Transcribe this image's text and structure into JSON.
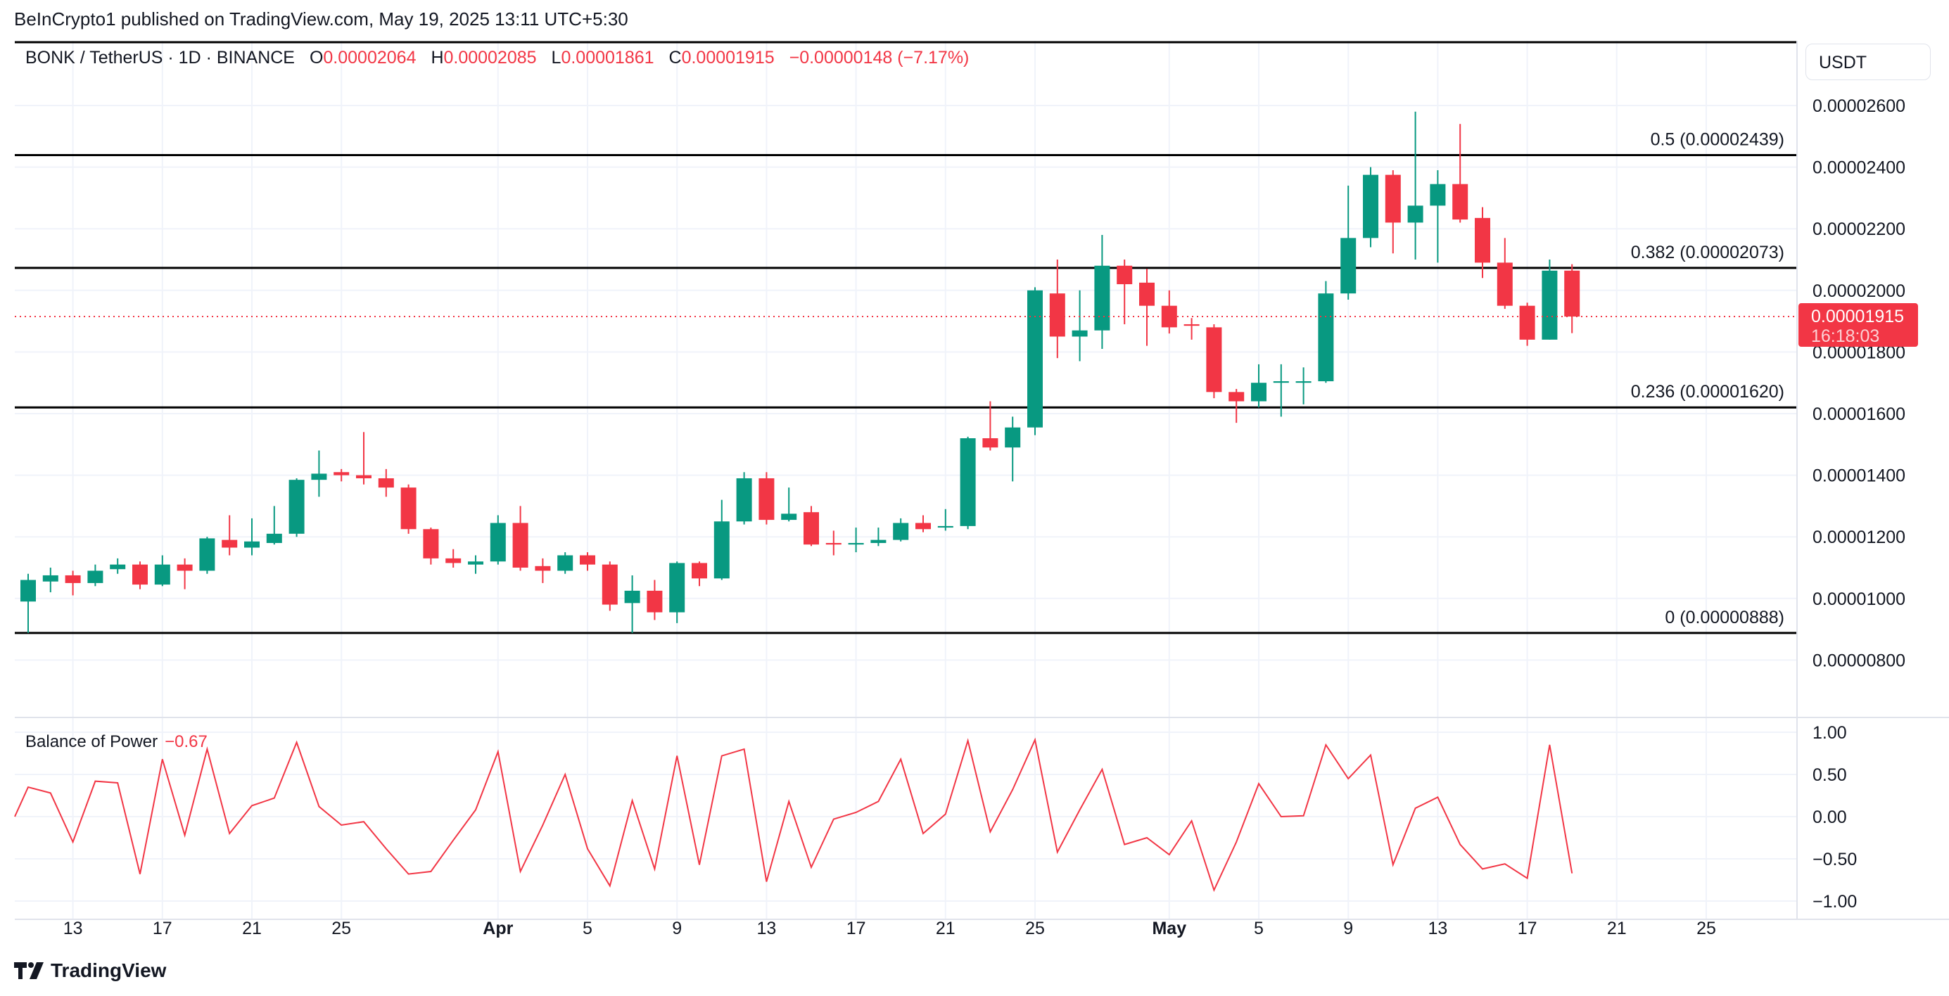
{
  "publish_line": "BeInCrypto1 published on TradingView.com, May 19, 2025 13:11 UTC+5:30",
  "legend": {
    "symbol": "BONK / TetherUS · 1D · BINANCE",
    "o_label": "O",
    "o": "0.00002064",
    "h_label": "H",
    "h": "0.00002085",
    "l_label": "L",
    "l": "0.00001861",
    "c_label": "C",
    "c": "0.00001915",
    "change": "−0.00000148 (−7.17%)"
  },
  "currency": "USDT",
  "last_price": {
    "price": "0.00001915",
    "countdown": "16:18:03"
  },
  "bop_legend": {
    "name": "Balance of Power",
    "value": "−0.67"
  },
  "brand": "TradingView",
  "colors": {
    "up": "#089981",
    "down": "#f23645",
    "bop": "#f23645",
    "grid": "#f0f3fa",
    "fib": "#000000"
  },
  "chart_data": [
    {
      "type": "candlestick",
      "title": "BONK / TetherUS · 1D · BINANCE",
      "price_unit": "1e-8 USDT",
      "ylim": [
        700,
        2800
      ],
      "y_ticks": [
        {
          "value": 2600,
          "label": "0.00002600"
        },
        {
          "value": 2400,
          "label": "0.00002400"
        },
        {
          "value": 2200,
          "label": "0.00002200"
        },
        {
          "value": 2000,
          "label": "0.00002000"
        },
        {
          "value": 1800,
          "label": "0.00001800"
        },
        {
          "value": 1600,
          "label": "0.00001600"
        },
        {
          "value": 1400,
          "label": "0.00001400"
        },
        {
          "value": 1200,
          "label": "0.00001200"
        },
        {
          "value": 1000,
          "label": "0.00001000"
        },
        {
          "value": 800,
          "label": "0.00000800"
        }
      ],
      "fib_levels": [
        {
          "value": 2439,
          "label": "0.5 (0.00002439)"
        },
        {
          "value": 2073,
          "label": "0.382 (0.00002073)"
        },
        {
          "value": 1620,
          "label": "0.236 (0.00001620)"
        },
        {
          "value": 888,
          "label": "0 (0.00000888)"
        }
      ],
      "x_ticks": [
        {
          "day": 2,
          "label": "13"
        },
        {
          "day": 6,
          "label": "17"
        },
        {
          "day": 10,
          "label": "21"
        },
        {
          "day": 14,
          "label": "25"
        },
        {
          "day": 21,
          "label": "Apr",
          "bold": true
        },
        {
          "day": 25,
          "label": "5"
        },
        {
          "day": 29,
          "label": "9"
        },
        {
          "day": 33,
          "label": "13"
        },
        {
          "day": 37,
          "label": "17"
        },
        {
          "day": 41,
          "label": "21"
        },
        {
          "day": 45,
          "label": "25"
        },
        {
          "day": 51,
          "label": "May",
          "bold": true
        },
        {
          "day": 55,
          "label": "5"
        },
        {
          "day": 59,
          "label": "9"
        },
        {
          "day": 63,
          "label": "13"
        },
        {
          "day": 67,
          "label": "17"
        },
        {
          "day": 71,
          "label": "21"
        },
        {
          "day": 75,
          "label": "25"
        }
      ],
      "first_date": "2025-03-11",
      "ohlc": [
        [
          990,
          1060,
          1080,
          888
        ],
        [
          1055,
          1075,
          1100,
          1020
        ],
        [
          1075,
          1050,
          1090,
          1010
        ],
        [
          1050,
          1090,
          1110,
          1040
        ],
        [
          1095,
          1110,
          1130,
          1080
        ],
        [
          1110,
          1045,
          1120,
          1030
        ],
        [
          1045,
          1110,
          1140,
          1040
        ],
        [
          1110,
          1090,
          1130,
          1030
        ],
        [
          1090,
          1195,
          1200,
          1080
        ],
        [
          1190,
          1165,
          1270,
          1140
        ],
        [
          1165,
          1185,
          1260,
          1140
        ],
        [
          1180,
          1210,
          1300,
          1175
        ],
        [
          1210,
          1385,
          1390,
          1200
        ],
        [
          1385,
          1405,
          1480,
          1330
        ],
        [
          1410,
          1400,
          1420,
          1380
        ],
        [
          1400,
          1390,
          1540,
          1370
        ],
        [
          1390,
          1360,
          1420,
          1330
        ],
        [
          1360,
          1225,
          1370,
          1210
        ],
        [
          1225,
          1130,
          1230,
          1110
        ],
        [
          1130,
          1115,
          1160,
          1100
        ],
        [
          1110,
          1120,
          1140,
          1080
        ],
        [
          1120,
          1245,
          1270,
          1110
        ],
        [
          1245,
          1100,
          1300,
          1090
        ],
        [
          1105,
          1090,
          1130,
          1050
        ],
        [
          1090,
          1140,
          1150,
          1080
        ],
        [
          1140,
          1110,
          1150,
          1090
        ],
        [
          1110,
          980,
          1120,
          960
        ],
        [
          985,
          1025,
          1075,
          888
        ],
        [
          1025,
          955,
          1060,
          930
        ],
        [
          955,
          1115,
          1120,
          920
        ],
        [
          1115,
          1065,
          1120,
          1040
        ],
        [
          1065,
          1250,
          1320,
          1060
        ],
        [
          1250,
          1390,
          1410,
          1240
        ],
        [
          1390,
          1255,
          1410,
          1240
        ],
        [
          1255,
          1275,
          1360,
          1250
        ],
        [
          1280,
          1175,
          1300,
          1170
        ],
        [
          1180,
          1175,
          1220,
          1140
        ],
        [
          1175,
          1180,
          1230,
          1150
        ],
        [
          1180,
          1190,
          1230,
          1170
        ],
        [
          1190,
          1245,
          1260,
          1185
        ],
        [
          1245,
          1225,
          1270,
          1215
        ],
        [
          1230,
          1235,
          1290,
          1220
        ],
        [
          1235,
          1520,
          1525,
          1225
        ],
        [
          1520,
          1490,
          1640,
          1480
        ],
        [
          1490,
          1555,
          1590,
          1380
        ],
        [
          1555,
          2000,
          2010,
          1530
        ],
        [
          1990,
          1850,
          2100,
          1780
        ],
        [
          1850,
          1870,
          2000,
          1770
        ],
        [
          1870,
          2080,
          2180,
          1810
        ],
        [
          2080,
          2020,
          2100,
          1890
        ],
        [
          2025,
          1950,
          2070,
          1820
        ],
        [
          1950,
          1880,
          2000,
          1860
        ],
        [
          1890,
          1885,
          1910,
          1840
        ],
        [
          1880,
          1670,
          1890,
          1650
        ],
        [
          1670,
          1640,
          1680,
          1570
        ],
        [
          1640,
          1700,
          1760,
          1620
        ],
        [
          1700,
          1705,
          1760,
          1590
        ],
        [
          1700,
          1705,
          1750,
          1630
        ],
        [
          1705,
          1990,
          2030,
          1700
        ],
        [
          1990,
          2170,
          2340,
          1970
        ],
        [
          2170,
          2375,
          2400,
          2140
        ],
        [
          2375,
          2220,
          2390,
          2120
        ],
        [
          2220,
          2275,
          2580,
          2100
        ],
        [
          2275,
          2345,
          2390,
          2090
        ],
        [
          2345,
          2230,
          2540,
          2220
        ],
        [
          2235,
          2090,
          2270,
          2040
        ],
        [
          2090,
          1950,
          2170,
          1940
        ],
        [
          1950,
          1840,
          1960,
          1820
        ],
        [
          1840,
          2064,
          2100,
          1840
        ],
        [
          2064,
          1915,
          2085,
          1861
        ]
      ],
      "last_close": 1915
    },
    {
      "type": "line",
      "title": "Balance of Power",
      "ylim": [
        -1.15,
        1.2
      ],
      "y_ticks": [
        {
          "value": 1,
          "label": "1.00"
        },
        {
          "value": 0.5,
          "label": "0.50"
        },
        {
          "value": 0,
          "label": "0.00"
        },
        {
          "value": -0.5,
          "label": "−0.50"
        },
        {
          "value": -1,
          "label": "−1.00"
        }
      ],
      "values": [
        0.35,
        0.28,
        -0.3,
        0.42,
        0.4,
        -0.68,
        0.68,
        -0.22,
        0.8,
        -0.2,
        0.13,
        0.22,
        0.88,
        0.12,
        -0.1,
        -0.06,
        -0.38,
        -0.68,
        -0.65,
        -0.28,
        0.08,
        0.77,
        -0.65,
        -0.1,
        0.5,
        -0.38,
        -0.82,
        0.19,
        -0.62,
        0.72,
        -0.57,
        0.72,
        0.8,
        -0.77,
        0.18,
        -0.6,
        -0.03,
        0.05,
        0.18,
        0.68,
        -0.2,
        0.03,
        0.9,
        -0.18,
        0.32,
        0.91,
        -0.42,
        0.08,
        0.56,
        -0.33,
        -0.25,
        -0.45,
        -0.05,
        -0.87,
        -0.3,
        0.39,
        0.0,
        0.01,
        0.85,
        0.45,
        0.73,
        -0.57,
        0.1,
        0.23,
        -0.33,
        -0.62,
        -0.56,
        -0.73,
        0.85,
        -0.67
      ]
    }
  ]
}
